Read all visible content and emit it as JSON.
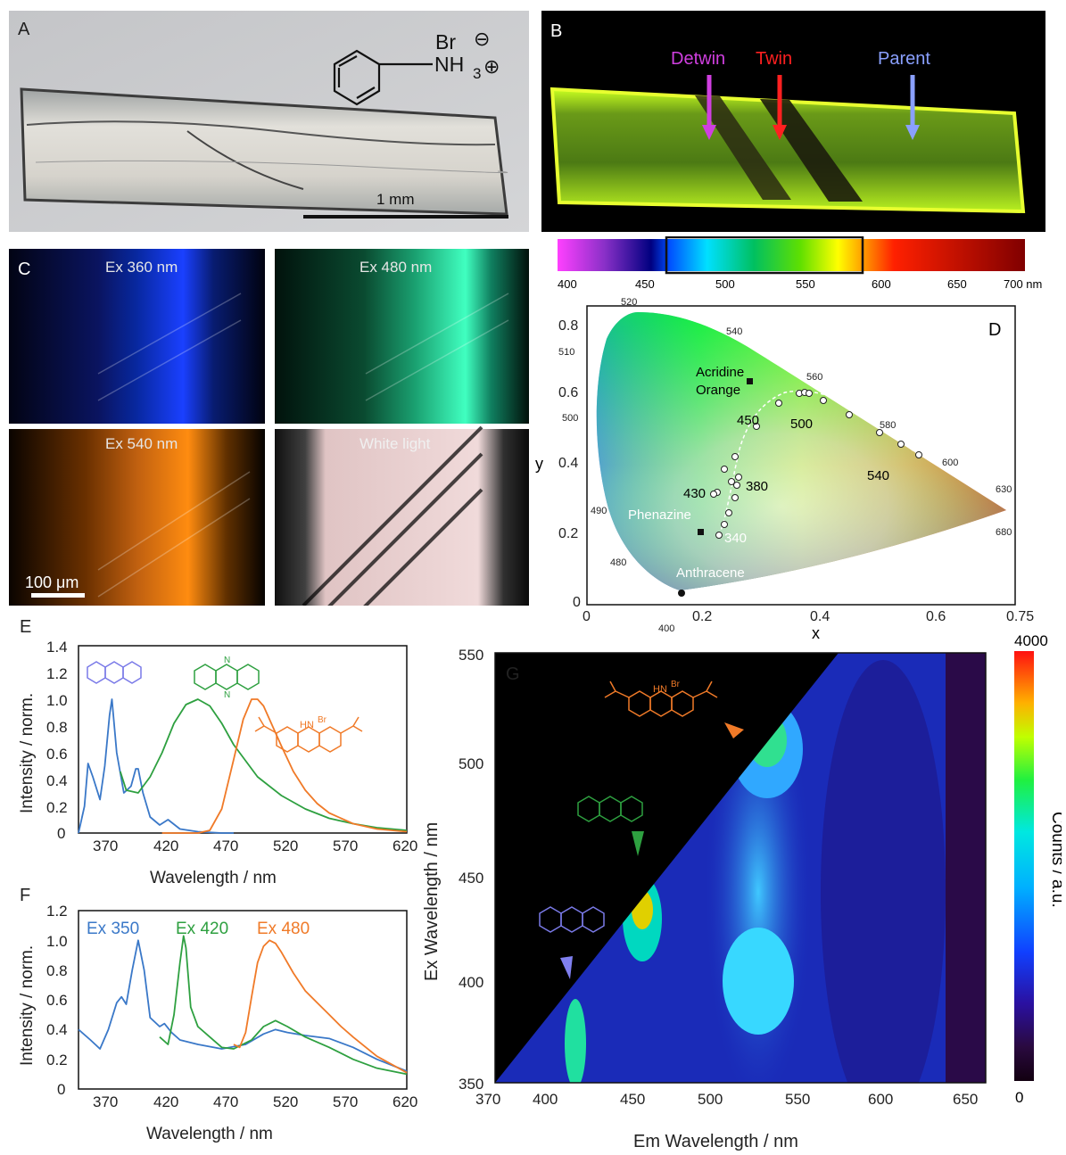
{
  "panelA": {
    "label": "A",
    "formula_br": "Br",
    "formula_nh": "NH",
    "formula_sub": "3",
    "minus": "⊖",
    "plus": "⊕",
    "scale_text": "1 mm"
  },
  "panelB": {
    "label": "B",
    "arrows": [
      {
        "text": "Detwin",
        "color": "#d03fe0"
      },
      {
        "text": "Twin",
        "color": "#ff2020"
      },
      {
        "text": "Parent",
        "color": "#8aa0ff"
      }
    ]
  },
  "colorbar": {
    "ticks": [
      "400",
      "450",
      "500",
      "550",
      "600",
      "650",
      "700 nm"
    ]
  },
  "panelC": {
    "label": "C",
    "tiles": [
      "Ex 360 nm",
      "Ex 480 nm",
      "Ex 540 nm",
      "White light"
    ],
    "scale_text": "100 μm"
  },
  "panelD": {
    "label": "D",
    "xlabel": "x",
    "ylabel": "y",
    "xticks": [
      "0",
      "0.2",
      "0.4",
      "0.6",
      "0.75"
    ],
    "yticks": [
      "0",
      "0.2",
      "0.4",
      "0.6",
      "0.8"
    ],
    "locus_labels": [
      "520",
      "540",
      "510",
      "560",
      "500",
      "580",
      "600",
      "630",
      "680",
      "490",
      "480",
      "400"
    ],
    "point_labels": [
      "450",
      "500",
      "540",
      "430",
      "380",
      "340"
    ],
    "compounds": [
      "Acridine",
      "Orange",
      "Phenazine",
      "Anthracene"
    ]
  },
  "panelE": {
    "label": "E",
    "xlabel": "Wavelength / nm",
    "ylabel": "Intensity / norm.",
    "xticks": [
      "370",
      "420",
      "470",
      "520",
      "570",
      "620"
    ],
    "yticks": [
      "0",
      "0.2",
      "0.4",
      "0.6",
      "0.8",
      "1.0",
      "1.2",
      "1.4"
    ],
    "br_label": "Br",
    "n_label": "N",
    "h_label": "H"
  },
  "panelF": {
    "label": "F",
    "xlabel": "Wavelength / nm",
    "ylabel": "Intensity / norm.",
    "xticks": [
      "370",
      "420",
      "470",
      "520",
      "570",
      "620"
    ],
    "yticks": [
      "0",
      "0.2",
      "0.4",
      "0.6",
      "0.8",
      "1.0",
      "1.2"
    ],
    "legend": [
      {
        "text": "Ex 350",
        "color": "#3a78c8"
      },
      {
        "text": "Ex 420",
        "color": "#2ea040"
      },
      {
        "text": "Ex 480",
        "color": "#f07a28"
      }
    ]
  },
  "panelG": {
    "label": "G",
    "xlabel": "Em Wavelength / nm",
    "ylabel": "Ex Wavelength / nm",
    "xticks": [
      "370",
      "400",
      "450",
      "500",
      "550",
      "600",
      "650"
    ],
    "yticks": [
      "350",
      "400",
      "450",
      "500",
      "550"
    ],
    "cbar_label": "Counts / a.u.",
    "cbar_max": "4000",
    "cbar_min": "0",
    "br_label": "Br",
    "n_label": "N",
    "h_label": "H"
  },
  "chart_data": [
    {
      "type": "line",
      "panel": "E",
      "xlabel": "Wavelength / nm",
      "ylabel": "Intensity / norm.",
      "xlim": [
        370,
        645
      ],
      "ylim": [
        0,
        1.4
      ],
      "series": [
        {
          "color": "#3a78c8",
          "x": [
            370,
            375,
            378,
            382,
            388,
            392,
            396,
            398,
            402,
            408,
            414,
            418,
            420,
            424,
            430,
            438,
            445,
            455,
            470,
            490,
            500
          ],
          "y": [
            0.0,
            0.2,
            0.52,
            0.42,
            0.25,
            0.5,
            0.88,
            1.0,
            0.6,
            0.3,
            0.35,
            0.48,
            0.48,
            0.3,
            0.12,
            0.06,
            0.1,
            0.03,
            0.01,
            0.0,
            0.0
          ]
        },
        {
          "color": "#2ea040",
          "x": [
            405,
            410,
            420,
            430,
            440,
            450,
            460,
            470,
            480,
            490,
            500,
            520,
            540,
            560,
            580,
            600,
            620,
            645
          ],
          "y": [
            0.46,
            0.32,
            0.3,
            0.42,
            0.6,
            0.82,
            0.96,
            1.0,
            0.95,
            0.82,
            0.66,
            0.42,
            0.28,
            0.18,
            0.11,
            0.07,
            0.04,
            0.02
          ]
        },
        {
          "color": "#f07a28",
          "x": [
            440,
            470,
            480,
            490,
            500,
            508,
            515,
            520,
            525,
            530,
            540,
            550,
            560,
            570,
            580,
            600,
            620,
            645
          ],
          "y": [
            0.0,
            0.0,
            0.02,
            0.18,
            0.55,
            0.85,
            1.0,
            1.0,
            0.95,
            0.85,
            0.65,
            0.46,
            0.32,
            0.22,
            0.15,
            0.07,
            0.03,
            0.01
          ]
        }
      ]
    },
    {
      "type": "line",
      "panel": "F",
      "xlabel": "Wavelength / nm",
      "ylabel": "Intensity / norm.",
      "xlim": [
        370,
        645
      ],
      "ylim": [
        0,
        1.2
      ],
      "series": [
        {
          "name": "Ex 350",
          "color": "#3a78c8",
          "x": [
            370,
            380,
            388,
            395,
            402,
            406,
            410,
            415,
            420,
            425,
            430,
            438,
            442,
            448,
            455,
            470,
            490,
            510,
            525,
            535,
            545,
            560,
            580,
            600,
            620,
            645
          ],
          "y": [
            0.4,
            0.33,
            0.27,
            0.4,
            0.58,
            0.62,
            0.57,
            0.8,
            1.0,
            0.8,
            0.48,
            0.42,
            0.44,
            0.38,
            0.33,
            0.3,
            0.27,
            0.3,
            0.37,
            0.4,
            0.38,
            0.36,
            0.34,
            0.28,
            0.2,
            0.12
          ]
        },
        {
          "name": "Ex 420",
          "color": "#2ea040",
          "x": [
            438,
            445,
            450,
            455,
            458,
            460,
            464,
            470,
            480,
            490,
            500,
            515,
            525,
            535,
            545,
            560,
            580,
            600,
            620,
            645
          ],
          "y": [
            0.35,
            0.3,
            0.5,
            0.85,
            1.03,
            0.95,
            0.55,
            0.42,
            0.35,
            0.28,
            0.27,
            0.33,
            0.42,
            0.46,
            0.42,
            0.35,
            0.28,
            0.2,
            0.14,
            0.1
          ]
        },
        {
          "name": "Ex 480",
          "color": "#f07a28",
          "x": [
            500,
            505,
            510,
            515,
            520,
            525,
            530,
            535,
            540,
            550,
            560,
            570,
            580,
            590,
            600,
            620,
            645
          ],
          "y": [
            0.3,
            0.28,
            0.38,
            0.62,
            0.85,
            0.96,
            1.0,
            0.98,
            0.92,
            0.78,
            0.66,
            0.58,
            0.5,
            0.42,
            0.35,
            0.22,
            0.11
          ]
        }
      ]
    },
    {
      "type": "heatmap",
      "panel": "G",
      "xlabel": "Em Wavelength / nm",
      "ylabel": "Ex Wavelength / nm",
      "xlim": [
        370,
        655
      ],
      "ylim": [
        350,
        550
      ],
      "zlim": [
        0,
        4000
      ],
      "peaks": [
        {
          "em": 537,
          "ex": 510,
          "z": 2800
        },
        {
          "em": 458,
          "ex": 432,
          "z": 3600
        },
        {
          "em": 418,
          "ex": 370,
          "z": 2700
        },
        {
          "em": 530,
          "ex": 395,
          "z": 1900
        }
      ]
    }
  ]
}
